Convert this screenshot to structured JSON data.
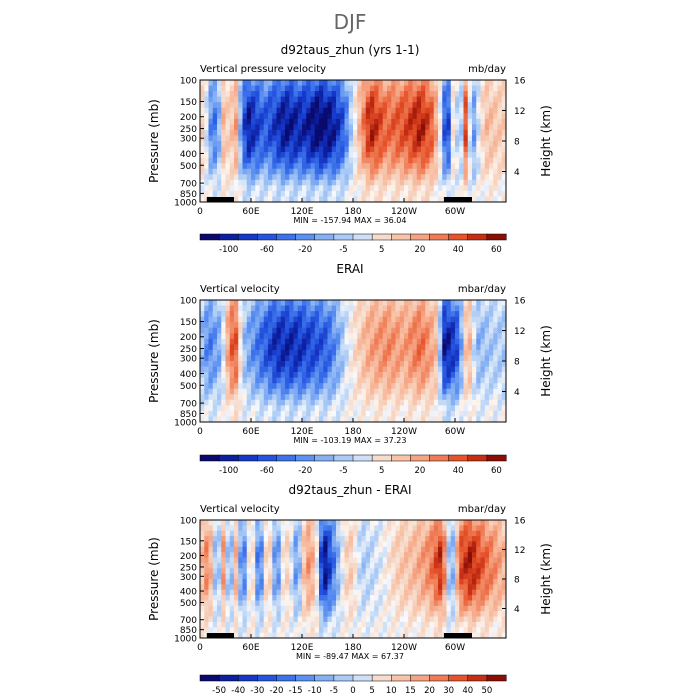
{
  "page": {
    "title": "DJF"
  },
  "chart_data": [
    {
      "type": "heatmap",
      "title": "d92taus_zhun (yrs 1-1)",
      "left_label": "Vertical pressure velocity",
      "units": "mb/day",
      "ylabel": "Pressure (mb)",
      "ylabel_right": "Height (km)",
      "x_ticks": [
        "0",
        "60E",
        "120E",
        "180",
        "120W",
        "60W"
      ],
      "y_ticks": [
        "100",
        "150",
        "200",
        "250",
        "300",
        "400",
        "500",
        "700",
        "850",
        "1000"
      ],
      "y_right_ticks": [
        "4",
        "8",
        "12",
        "16"
      ],
      "stats": "MIN = -157.94   MAX =   36.04",
      "colorbar_labels": [
        "-100",
        "-60",
        "-20",
        "-5",
        "5",
        "20",
        "40",
        "60"
      ],
      "colorbar_colors": [
        "#0a0a6e",
        "#0c1f9e",
        "#1638c7",
        "#2555de",
        "#3d72ea",
        "#5d91f0",
        "#86b0f4",
        "#abcbf6",
        "#cfe0f6",
        "#f6dccd",
        "#f8c3a8",
        "#f5a383",
        "#ef7c55",
        "#e6542c",
        "#c62f14",
        "#8b0e06"
      ],
      "lon_profile": [
        [
          0,
          0.3
        ],
        [
          8,
          -0.1
        ],
        [
          15,
          -0.6
        ],
        [
          25,
          -0.2
        ],
        [
          30,
          0.8
        ],
        [
          35,
          -0.4
        ],
        [
          40,
          0.9
        ],
        [
          45,
          -0.1
        ],
        [
          55,
          -0.9
        ],
        [
          75,
          -0.6
        ],
        [
          85,
          -0.7
        ],
        [
          100,
          -0.9
        ],
        [
          120,
          -0.8
        ],
        [
          140,
          -1.0
        ],
        [
          155,
          -0.9
        ],
        [
          170,
          -0.6
        ],
        [
          185,
          0.2
        ],
        [
          200,
          0.9
        ],
        [
          220,
          0.6
        ],
        [
          240,
          0.7
        ],
        [
          260,
          0.9
        ],
        [
          275,
          0.6
        ],
        [
          285,
          -0.2
        ],
        [
          290,
          -1.0
        ],
        [
          300,
          0.4
        ],
        [
          305,
          -0.7
        ],
        [
          312,
          0.8
        ],
        [
          320,
          -0.5
        ],
        [
          335,
          0.3
        ],
        [
          360,
          0.2
        ]
      ]
    },
    {
      "type": "heatmap",
      "title": "ERAI",
      "left_label": "Vertical velocity",
      "units": "mbar/day",
      "ylabel": "Pressure (mb)",
      "ylabel_right": "Height (km)",
      "x_ticks": [
        "0",
        "60E",
        "120E",
        "180",
        "120W",
        "60W"
      ],
      "y_ticks": [
        "100",
        "150",
        "200",
        "250",
        "300",
        "400",
        "500",
        "700",
        "850",
        "1000"
      ],
      "y_right_ticks": [
        "4",
        "8",
        "12",
        "16"
      ],
      "stats": "MIN = -103.19   MAX =   37.23",
      "colorbar_labels": [
        "-100",
        "-60",
        "-20",
        "-5",
        "5",
        "20",
        "40",
        "60"
      ],
      "colorbar_colors": [
        "#0a0a6e",
        "#0c1f9e",
        "#1638c7",
        "#2555de",
        "#3d72ea",
        "#5d91f0",
        "#86b0f4",
        "#abcbf6",
        "#cfe0f6",
        "#f6dccd",
        "#f8c3a8",
        "#f5a383",
        "#ef7c55",
        "#e6542c",
        "#c62f14",
        "#8b0e06"
      ],
      "lon_profile": [
        [
          0,
          -0.2
        ],
        [
          10,
          -0.5
        ],
        [
          25,
          -0.3
        ],
        [
          35,
          0.6
        ],
        [
          42,
          0.7
        ],
        [
          50,
          -0.2
        ],
        [
          60,
          -0.4
        ],
        [
          75,
          -0.6
        ],
        [
          90,
          -0.8
        ],
        [
          110,
          -0.8
        ],
        [
          130,
          -0.7
        ],
        [
          150,
          -0.6
        ],
        [
          165,
          -0.3
        ],
        [
          180,
          0.1
        ],
        [
          200,
          0.4
        ],
        [
          220,
          0.5
        ],
        [
          240,
          0.4
        ],
        [
          260,
          0.6
        ],
        [
          278,
          0.3
        ],
        [
          288,
          -0.9
        ],
        [
          295,
          -0.8
        ],
        [
          305,
          -0.6
        ],
        [
          315,
          0.5
        ],
        [
          325,
          -0.3
        ],
        [
          345,
          -0.2
        ],
        [
          360,
          -0.2
        ]
      ]
    },
    {
      "type": "heatmap",
      "title": "d92taus_zhun - ERAI",
      "left_label": "Vertical velocity",
      "units": "mbar/day",
      "ylabel": "Pressure (mb)",
      "ylabel_right": "Height (km)",
      "x_ticks": [
        "0",
        "60E",
        "120E",
        "180",
        "120W",
        "60W"
      ],
      "y_ticks": [
        "100",
        "150",
        "200",
        "250",
        "300",
        "400",
        "500",
        "700",
        "850",
        "1000"
      ],
      "y_right_ticks": [
        "4",
        "8",
        "12",
        "16"
      ],
      "stats": "MIN = -89.47   MAX =   67.37",
      "colorbar_labels": [
        "-50",
        "-40",
        "-30",
        "-20",
        "-15",
        "-10",
        "-5",
        "0",
        "5",
        "10",
        "15",
        "20",
        "30",
        "40",
        "50"
      ],
      "colorbar_colors": [
        "#0a0a6e",
        "#0c1f9e",
        "#1638c7",
        "#2555de",
        "#3d72ea",
        "#5d91f0",
        "#86b0f4",
        "#abcbf6",
        "#cfe0f6",
        "#f6dccd",
        "#f8c3a8",
        "#f5a383",
        "#ef7c55",
        "#e6542c",
        "#c62f14",
        "#8b0e06"
      ],
      "lon_profile": [
        [
          0,
          0.2
        ],
        [
          10,
          0.6
        ],
        [
          20,
          -0.5
        ],
        [
          28,
          0.5
        ],
        [
          35,
          -0.6
        ],
        [
          42,
          0.4
        ],
        [
          50,
          -0.7
        ],
        [
          60,
          0.3
        ],
        [
          70,
          -0.7
        ],
        [
          80,
          0.4
        ],
        [
          90,
          -0.6
        ],
        [
          100,
          0.3
        ],
        [
          115,
          -0.5
        ],
        [
          125,
          0.5
        ],
        [
          135,
          0.3
        ],
        [
          145,
          -1.0
        ],
        [
          160,
          -0.4
        ],
        [
          175,
          0.3
        ],
        [
          190,
          -0.2
        ],
        [
          210,
          -0.1
        ],
        [
          230,
          0.2
        ],
        [
          250,
          0.3
        ],
        [
          270,
          0.5
        ],
        [
          285,
          0.9
        ],
        [
          295,
          -0.6
        ],
        [
          305,
          0.7
        ],
        [
          318,
          0.9
        ],
        [
          330,
          0.7
        ],
        [
          345,
          0.5
        ],
        [
          360,
          0.3
        ]
      ]
    }
  ]
}
